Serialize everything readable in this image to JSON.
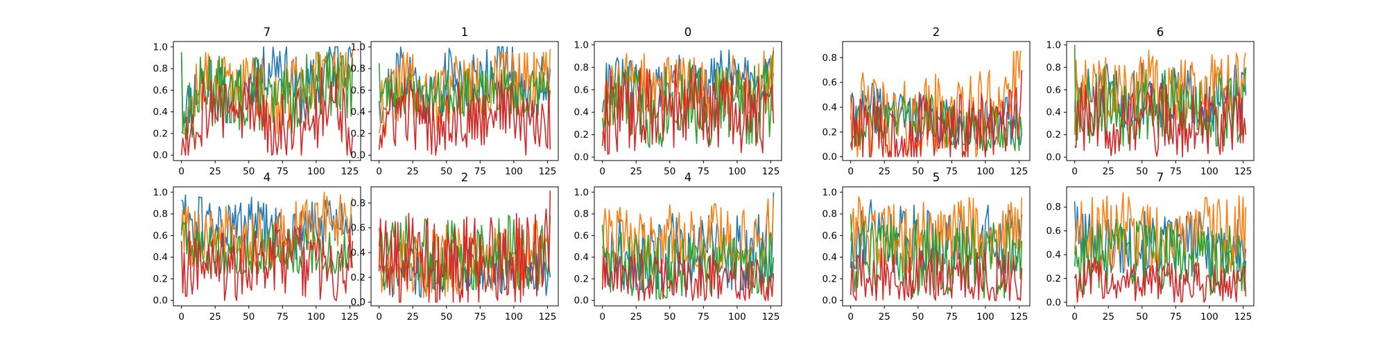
{
  "colors": [
    "#1f77b4",
    "#ff7f0e",
    "#2ca02c",
    "#d62728"
  ],
  "chart_data": [
    {
      "type": "line",
      "title": "7",
      "points": 128,
      "xlim": [
        -6,
        133
      ],
      "ylim": [
        -0.05,
        1.05
      ],
      "xticks": [
        0,
        25,
        50,
        75,
        100,
        125
      ],
      "yticks": [
        0.0,
        0.2,
        0.4,
        0.6,
        0.8,
        1.0
      ],
      "ytick_labels": [
        "0.0",
        "0.2",
        "0.4",
        "0.6",
        "0.8",
        "1.0"
      ],
      "series": [
        {
          "min": 0.3,
          "max": 1.0,
          "start": 0.95,
          "end": 0.95,
          "anchors": [
            0.3,
            0.8,
            0.4,
            0.75,
            0.9,
            0.5,
            0.85,
            0.95
          ],
          "seed": 11
        },
        {
          "min": 0.2,
          "max": 0.95,
          "start": 0.22,
          "end": 0.97,
          "anchors": [
            0.25,
            0.75,
            0.6,
            0.7,
            0.45,
            0.7,
            0.65,
            0.9
          ],
          "seed": 12
        },
        {
          "min": 0.15,
          "max": 0.95,
          "start": 0.95,
          "end": 0.9,
          "anchors": [
            0.2,
            0.7,
            0.5,
            0.6,
            0.4,
            0.6,
            0.7,
            0.55
          ],
          "seed": 13
        },
        {
          "min": 0.0,
          "max": 0.9,
          "start": 0.0,
          "end": 0.17,
          "anchors": [
            0.1,
            0.5,
            0.35,
            0.5,
            0.3,
            0.3,
            0.55,
            0.15
          ],
          "seed": 14
        }
      ]
    },
    {
      "type": "line",
      "title": "1",
      "points": 128,
      "xlim": [
        -6,
        133
      ],
      "ylim": [
        -0.05,
        1.05
      ],
      "xticks": [
        0,
        25,
        50,
        75,
        100,
        125
      ],
      "yticks": [
        0.0,
        0.2,
        0.4,
        0.6,
        0.8,
        1.0
      ],
      "ytick_labels": [
        "0.0",
        "0.2",
        "0.4",
        "0.6",
        "0.8",
        "1.0"
      ],
      "series": [
        {
          "min": 0.3,
          "max": 1.0,
          "start": 0.5,
          "end": 0.8,
          "anchors": [
            0.4,
            0.85,
            0.5,
            0.75,
            0.65,
            0.9,
            0.55,
            0.75
          ],
          "seed": 21
        },
        {
          "min": 0.15,
          "max": 0.95,
          "start": 0.2,
          "end": 0.98,
          "anchors": [
            0.4,
            0.7,
            0.45,
            0.65,
            0.6,
            0.65,
            0.7,
            0.85
          ],
          "seed": 22
        },
        {
          "min": 0.3,
          "max": 0.85,
          "start": 0.85,
          "end": 0.6,
          "anchors": [
            0.55,
            0.6,
            0.5,
            0.6,
            0.55,
            0.6,
            0.55,
            0.65
          ],
          "seed": 23
        },
        {
          "min": 0.0,
          "max": 0.75,
          "start": 0.05,
          "end": 0.05,
          "anchors": [
            0.2,
            0.45,
            0.25,
            0.4,
            0.3,
            0.5,
            0.25,
            0.35
          ],
          "seed": 24
        }
      ]
    },
    {
      "type": "line",
      "title": "0",
      "points": 128,
      "xlim": [
        -6,
        133
      ],
      "ylim": [
        -0.03,
        1.03
      ],
      "xticks": [
        0,
        25,
        50,
        75,
        100,
        125
      ],
      "yticks": [
        0.0,
        0.2,
        0.4,
        0.6,
        0.8,
        1.0
      ],
      "ytick_labels": [
        "0.0",
        "0.2",
        "0.4",
        "0.6",
        "0.8",
        "1.0"
      ],
      "series": [
        {
          "min": 0.45,
          "max": 1.0,
          "start": 0.4,
          "end": 0.75,
          "anchors": [
            0.7,
            0.65,
            0.55,
            0.7,
            0.6,
            0.75,
            0.65,
            0.8
          ],
          "seed": 31
        },
        {
          "min": 0.25,
          "max": 1.0,
          "start": 0.2,
          "end": 0.98,
          "anchors": [
            0.45,
            0.65,
            0.6,
            0.7,
            0.55,
            0.65,
            0.6,
            0.7
          ],
          "seed": 32
        },
        {
          "min": 0.0,
          "max": 0.9,
          "start": 0.35,
          "end": 0.95,
          "anchors": [
            0.4,
            0.5,
            0.4,
            0.55,
            0.45,
            0.5,
            0.45,
            0.55
          ],
          "seed": 33
        },
        {
          "min": 0.0,
          "max": 0.9,
          "start": 0.1,
          "end": 0.3,
          "anchors": [
            0.35,
            0.45,
            0.4,
            0.45,
            0.4,
            0.45,
            0.35,
            0.4
          ],
          "seed": 34
        }
      ]
    },
    {
      "type": "line",
      "title": "2",
      "points": 128,
      "xlim": [
        -6,
        133
      ],
      "ylim": [
        -0.03,
        0.93
      ],
      "xticks": [
        0,
        25,
        50,
        75,
        100,
        125
      ],
      "yticks": [
        0.0,
        0.2,
        0.4,
        0.6,
        0.8
      ],
      "ytick_labels": [
        "0.0",
        "0.2",
        "0.4",
        "0.6",
        "0.8"
      ],
      "series": [
        {
          "min": 0.1,
          "max": 0.6,
          "start": 0.3,
          "end": 0.2,
          "anchors": [
            0.3,
            0.4,
            0.35,
            0.3,
            0.25,
            0.2,
            0.3,
            0.25
          ],
          "seed": 41
        },
        {
          "min": 0.0,
          "max": 0.85,
          "start": 0.5,
          "end": 0.85,
          "anchors": [
            0.35,
            0.3,
            0.25,
            0.3,
            0.35,
            0.3,
            0.45,
            0.6
          ],
          "seed": 42
        },
        {
          "min": 0.05,
          "max": 0.5,
          "start": 0.1,
          "end": 0.2,
          "anchors": [
            0.25,
            0.3,
            0.35,
            0.35,
            0.25,
            0.2,
            0.25,
            0.2
          ],
          "seed": 43
        },
        {
          "min": 0.0,
          "max": 0.7,
          "start": 0.1,
          "end": 0.7,
          "anchors": [
            0.2,
            0.2,
            0.15,
            0.25,
            0.2,
            0.25,
            0.2,
            0.3
          ],
          "seed": 44
        }
      ]
    },
    {
      "type": "line",
      "title": "6",
      "points": 128,
      "xlim": [
        -6,
        133
      ],
      "ylim": [
        -0.03,
        1.03
      ],
      "xticks": [
        0,
        25,
        50,
        75,
        100,
        125
      ],
      "yticks": [
        0.0,
        0.2,
        0.4,
        0.6,
        0.8,
        1.0
      ],
      "ytick_labels": [
        "0.0",
        "0.2",
        "0.4",
        "0.6",
        "0.8",
        "1.0"
      ],
      "series": [
        {
          "min": 0.2,
          "max": 0.9,
          "start": 0.4,
          "end": 0.55,
          "anchors": [
            0.5,
            0.55,
            0.5,
            0.6,
            0.5,
            0.55,
            0.5,
            0.55
          ],
          "seed": 51
        },
        {
          "min": 0.2,
          "max": 0.95,
          "start": 0.2,
          "end": 0.93,
          "anchors": [
            0.55,
            0.6,
            0.55,
            0.65,
            0.55,
            0.6,
            0.65,
            0.7
          ],
          "seed": 52
        },
        {
          "min": 0.1,
          "max": 1.0,
          "start": 1.0,
          "end": 0.8,
          "anchors": [
            0.45,
            0.5,
            0.45,
            0.5,
            0.4,
            0.45,
            0.4,
            0.45
          ],
          "seed": 53
        },
        {
          "min": 0.0,
          "max": 0.8,
          "start": 0.1,
          "end": 0.2,
          "anchors": [
            0.3,
            0.35,
            0.3,
            0.35,
            0.3,
            0.35,
            0.3,
            0.3
          ],
          "seed": 54
        }
      ]
    },
    {
      "type": "line",
      "title": "4",
      "points": 128,
      "xlim": [
        -6,
        133
      ],
      "ylim": [
        -0.05,
        1.05
      ],
      "xticks": [
        0,
        25,
        50,
        75,
        100,
        125
      ],
      "yticks": [
        0.0,
        0.2,
        0.4,
        0.6,
        0.8,
        1.0
      ],
      "ytick_labels": [
        "0.0",
        "0.2",
        "0.4",
        "0.6",
        "0.8",
        "1.0"
      ],
      "series": [
        {
          "min": 0.35,
          "max": 1.0,
          "start": 0.93,
          "end": 0.6,
          "anchors": [
            0.75,
            0.7,
            0.65,
            0.7,
            0.6,
            0.65,
            0.7,
            0.65
          ],
          "seed": 61
        },
        {
          "min": 0.3,
          "max": 1.0,
          "start": 0.65,
          "end": 0.95,
          "anchors": [
            0.6,
            0.55,
            0.6,
            0.55,
            0.6,
            0.65,
            0.75,
            0.8
          ],
          "seed": 62
        },
        {
          "min": 0.25,
          "max": 0.8,
          "start": 0.6,
          "end": 0.3,
          "anchors": [
            0.5,
            0.45,
            0.4,
            0.45,
            0.5,
            0.45,
            0.4,
            0.4
          ],
          "seed": 63
        },
        {
          "min": 0.0,
          "max": 0.8,
          "start": 0.55,
          "end": 0.55,
          "anchors": [
            0.35,
            0.35,
            0.3,
            0.35,
            0.4,
            0.35,
            0.3,
            0.35
          ],
          "seed": 64
        }
      ]
    },
    {
      "type": "line",
      "title": "2",
      "points": 128,
      "xlim": [
        -6,
        133
      ],
      "ylim": [
        -0.03,
        0.93
      ],
      "xticks": [
        0,
        25,
        50,
        75,
        100,
        125
      ],
      "yticks": [
        0.0,
        0.2,
        0.4,
        0.6,
        0.8
      ],
      "ytick_labels": [
        "0.0",
        "0.2",
        "0.4",
        "0.6",
        "0.8"
      ],
      "series": [
        {
          "min": 0.0,
          "max": 0.45,
          "start": 0.3,
          "end": 0.2,
          "anchors": [
            0.2,
            0.25,
            0.2,
            0.25,
            0.3,
            0.25,
            0.2,
            0.25
          ],
          "seed": 71
        },
        {
          "min": 0.0,
          "max": 0.7,
          "start": 0.6,
          "end": 0.7,
          "anchors": [
            0.3,
            0.35,
            0.3,
            0.35,
            0.3,
            0.35,
            0.35,
            0.4
          ],
          "seed": 72
        },
        {
          "min": 0.1,
          "max": 0.85,
          "start": 0.45,
          "end": 0.7,
          "anchors": [
            0.35,
            0.4,
            0.35,
            0.4,
            0.35,
            0.4,
            0.35,
            0.4
          ],
          "seed": 73
        },
        {
          "min": 0.0,
          "max": 0.9,
          "start": 0.25,
          "end": 0.9,
          "anchors": [
            0.3,
            0.35,
            0.3,
            0.35,
            0.3,
            0.35,
            0.35,
            0.4
          ],
          "seed": 74
        }
      ]
    },
    {
      "type": "line",
      "title": "4",
      "points": 128,
      "xlim": [
        -6,
        133
      ],
      "ylim": [
        -0.05,
        1.05
      ],
      "xticks": [
        0,
        25,
        50,
        75,
        100,
        125
      ],
      "yticks": [
        0.0,
        0.2,
        0.4,
        0.6,
        0.8,
        1.0
      ],
      "ytick_labels": [
        "0.0",
        "0.2",
        "0.4",
        "0.6",
        "0.8",
        "1.0"
      ],
      "series": [
        {
          "min": 0.1,
          "max": 1.0,
          "start": 0.5,
          "end": 1.0,
          "anchors": [
            0.35,
            0.4,
            0.35,
            0.45,
            0.4,
            0.45,
            0.4,
            0.5
          ],
          "seed": 81
        },
        {
          "min": 0.2,
          "max": 0.95,
          "start": 0.2,
          "end": 0.95,
          "anchors": [
            0.55,
            0.6,
            0.55,
            0.65,
            0.55,
            0.6,
            0.55,
            0.65
          ],
          "seed": 82
        },
        {
          "min": 0.0,
          "max": 0.75,
          "start": 0.7,
          "end": 0.4,
          "anchors": [
            0.3,
            0.35,
            0.3,
            0.35,
            0.3,
            0.35,
            0.3,
            0.35
          ],
          "seed": 83
        },
        {
          "min": 0.0,
          "max": 0.6,
          "start": 0.1,
          "end": 0.25,
          "anchors": [
            0.2,
            0.25,
            0.2,
            0.25,
            0.2,
            0.25,
            0.2,
            0.2
          ],
          "seed": 84
        }
      ]
    },
    {
      "type": "line",
      "title": "5",
      "points": 128,
      "xlim": [
        -6,
        133
      ],
      "ylim": [
        -0.05,
        1.05
      ],
      "xticks": [
        0,
        25,
        50,
        75,
        100,
        125
      ],
      "yticks": [
        0.0,
        0.2,
        0.4,
        0.6,
        0.8,
        1.0
      ],
      "ytick_labels": [
        "0.0",
        "0.2",
        "0.4",
        "0.6",
        "0.8",
        "1.0"
      ],
      "series": [
        {
          "min": 0.2,
          "max": 1.0,
          "start": 0.3,
          "end": 0.8,
          "anchors": [
            0.6,
            0.65,
            0.55,
            0.6,
            0.55,
            0.6,
            0.55,
            0.6
          ],
          "seed": 91
        },
        {
          "min": 0.2,
          "max": 0.98,
          "start": 0.55,
          "end": 0.95,
          "anchors": [
            0.65,
            0.6,
            0.55,
            0.6,
            0.55,
            0.65,
            0.6,
            0.65
          ],
          "seed": 92
        },
        {
          "min": 0.0,
          "max": 0.85,
          "start": 0.8,
          "end": 0.55,
          "anchors": [
            0.35,
            0.4,
            0.35,
            0.4,
            0.35,
            0.4,
            0.35,
            0.45
          ],
          "seed": 93
        },
        {
          "min": 0.0,
          "max": 0.6,
          "start": 0.05,
          "end": 0.3,
          "anchors": [
            0.2,
            0.25,
            0.2,
            0.25,
            0.2,
            0.25,
            0.2,
            0.2
          ],
          "seed": 94
        }
      ]
    },
    {
      "type": "line",
      "title": "7",
      "points": 128,
      "xlim": [
        -6,
        133
      ],
      "ylim": [
        -0.03,
        0.97
      ],
      "xticks": [
        0,
        25,
        50,
        75,
        100,
        125
      ],
      "yticks": [
        0.0,
        0.2,
        0.4,
        0.6,
        0.8
      ],
      "ytick_labels": [
        "0.0",
        "0.2",
        "0.4",
        "0.6",
        "0.8"
      ],
      "series": [
        {
          "min": 0.2,
          "max": 0.85,
          "start": 0.85,
          "end": 0.45,
          "anchors": [
            0.55,
            0.5,
            0.45,
            0.5,
            0.45,
            0.5,
            0.45,
            0.45
          ],
          "seed": 101
        },
        {
          "min": 0.15,
          "max": 0.95,
          "start": 0.4,
          "end": 0.8,
          "anchors": [
            0.6,
            0.55,
            0.6,
            0.55,
            0.6,
            0.55,
            0.55,
            0.6
          ],
          "seed": 102
        },
        {
          "min": 0.05,
          "max": 0.8,
          "start": 0.3,
          "end": 0.35,
          "anchors": [
            0.4,
            0.35,
            0.4,
            0.35,
            0.4,
            0.35,
            0.35,
            0.4
          ],
          "seed": 103
        },
        {
          "min": 0.0,
          "max": 0.45,
          "start": 0.2,
          "end": 0.05,
          "anchors": [
            0.15,
            0.2,
            0.15,
            0.2,
            0.15,
            0.15,
            0.15,
            0.15
          ],
          "seed": 104
        }
      ]
    }
  ]
}
